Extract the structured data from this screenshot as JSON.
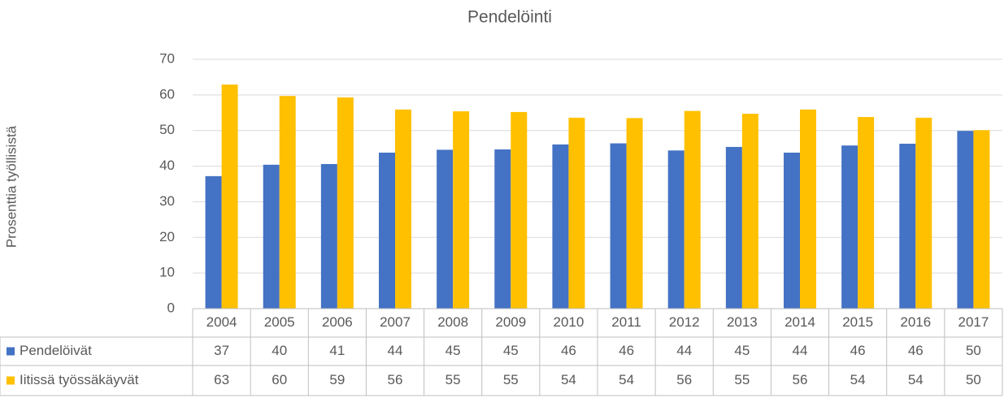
{
  "chart_data": {
    "type": "bar",
    "title": "Pendelöinti",
    "y_label": "Prosenttia työllisistä",
    "categories": [
      "2004",
      "2005",
      "2006",
      "2007",
      "2008",
      "2009",
      "2010",
      "2011",
      "2012",
      "2013",
      "2014",
      "2015",
      "2016",
      "2017"
    ],
    "series": [
      {
        "name": "Pendelöivät",
        "color": "#4472c4",
        "values": [
          37.2,
          40.4,
          40.6,
          43.8,
          44.6,
          44.7,
          46.1,
          46.4,
          44.4,
          45.4,
          43.8,
          45.8,
          46.3,
          49.9
        ],
        "value_labels": [
          "37",
          "40",
          "41",
          "44",
          "45",
          "45",
          "46",
          "46",
          "44",
          "45",
          "44",
          "46",
          "46",
          "50"
        ]
      },
      {
        "name": "Iitissä työssäkäyvät",
        "color": "#ffc000",
        "values": [
          62.9,
          59.7,
          59.3,
          55.9,
          55.4,
          55.2,
          53.6,
          53.5,
          55.5,
          54.7,
          55.9,
          53.8,
          53.6,
          50.1
        ],
        "value_labels": [
          "63",
          "60",
          "59",
          "56",
          "55",
          "55",
          "54",
          "54",
          "56",
          "55",
          "56",
          "54",
          "54",
          "50"
        ]
      }
    ],
    "ylim": [
      0,
      70
    ],
    "yticks": [
      0,
      10,
      20,
      30,
      40,
      50,
      60,
      70
    ],
    "grid": true
  }
}
